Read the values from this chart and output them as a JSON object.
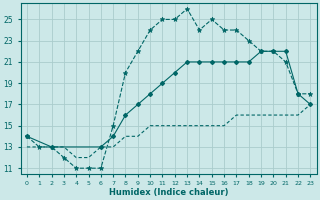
{
  "xlabel": "Humidex (Indice chaleur)",
  "bg_color": "#cce8e8",
  "grid_color": "#aacccc",
  "line_color": "#006666",
  "xlim": [
    -0.5,
    23.5
  ],
  "ylim": [
    10.5,
    26.5
  ],
  "xticks": [
    0,
    1,
    2,
    3,
    4,
    5,
    6,
    7,
    8,
    9,
    10,
    11,
    12,
    13,
    14,
    15,
    16,
    17,
    18,
    19,
    20,
    21,
    22,
    23
  ],
  "yticks": [
    11,
    13,
    15,
    17,
    19,
    21,
    23,
    25
  ],
  "line1_x": [
    0,
    1,
    2,
    3,
    4,
    5,
    6,
    7,
    8,
    9,
    10,
    11,
    12,
    13,
    14,
    15,
    16,
    17,
    18,
    19,
    20,
    21,
    22,
    23
  ],
  "line1_y": [
    14,
    13,
    13,
    12,
    11,
    11,
    11,
    15,
    20,
    22,
    24,
    25,
    25,
    26,
    24,
    25,
    24,
    24,
    23,
    22,
    22,
    21,
    18,
    18
  ],
  "line2_x": [
    0,
    2,
    6,
    7,
    8,
    9,
    10,
    11,
    12,
    13,
    14,
    15,
    16,
    17,
    18,
    19,
    20,
    21,
    22,
    23
  ],
  "line2_y": [
    14,
    13,
    13,
    14,
    16,
    17,
    18,
    19,
    20,
    21,
    21,
    21,
    21,
    21,
    21,
    22,
    22,
    22,
    18,
    17
  ],
  "line3_x": [
    0,
    1,
    2,
    3,
    4,
    5,
    6,
    7,
    8,
    9,
    10,
    11,
    12,
    13,
    14,
    15,
    16,
    17,
    18,
    19,
    20,
    21,
    22,
    23
  ],
  "line3_y": [
    13,
    13,
    13,
    13,
    12,
    12,
    13,
    13,
    14,
    14,
    15,
    15,
    15,
    15,
    15,
    15,
    15,
    16,
    16,
    16,
    16,
    16,
    16,
    17
  ]
}
